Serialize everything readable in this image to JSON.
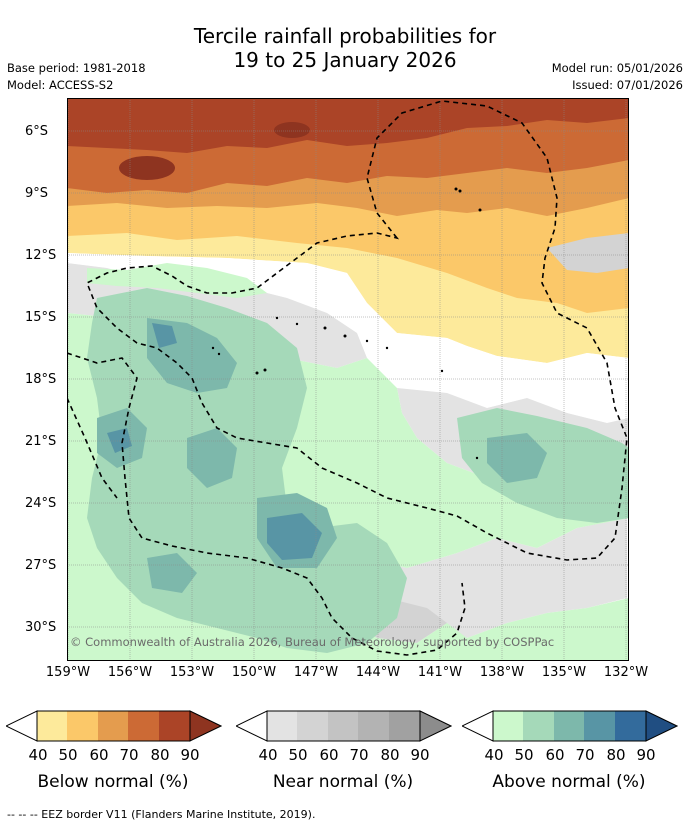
{
  "title": {
    "line1": "Tercile rainfall probabilities for",
    "line2": "19 to 25 January 2026"
  },
  "meta": {
    "base_period": "Base period: 1981-2018",
    "model": "Model: ACCESS-S2",
    "model_run": "Model run: 05/01/2026",
    "issued": "Issued: 07/01/2026"
  },
  "map": {
    "copyright": "© Commonwealth of Australia 2026, Bureau of Meteorology, supported by COSPPac",
    "lat_labels": [
      "6°S",
      "9°S",
      "12°S",
      "15°S",
      "18°S",
      "21°S",
      "24°S",
      "27°S",
      "30°S"
    ],
    "lon_labels": [
      "159°W",
      "156°W",
      "153°W",
      "150°W",
      "147°W",
      "144°W",
      "141°W",
      "138°W",
      "135°W",
      "132°W"
    ]
  },
  "legends": [
    {
      "title": "Below normal (%)",
      "ticks": [
        "40",
        "50",
        "60",
        "70",
        "80",
        "90"
      ],
      "colors": [
        "#fdea9b",
        "#fbc869",
        "#e49c4e",
        "#cc6a35",
        "#ab4427",
        "#8e3420"
      ]
    },
    {
      "title": "Near normal (%)",
      "ticks": [
        "40",
        "50",
        "60",
        "70",
        "80",
        "90"
      ],
      "colors": [
        "#e3e3e3",
        "#d3d3d3",
        "#c3c3c3",
        "#b3b3b3",
        "#a1a1a1",
        "#8c8c8c"
      ]
    },
    {
      "title": "Above normal (%)",
      "ticks": [
        "40",
        "50",
        "60",
        "70",
        "80",
        "90"
      ],
      "colors": [
        "#ccf8cc",
        "#a5d9b9",
        "#7db8ab",
        "#5895a5",
        "#336b9c",
        "#204e82"
      ]
    }
  ],
  "footer": "--  --  -- EEZ border V11 (Flanders Marine Institute, 2019)."
}
